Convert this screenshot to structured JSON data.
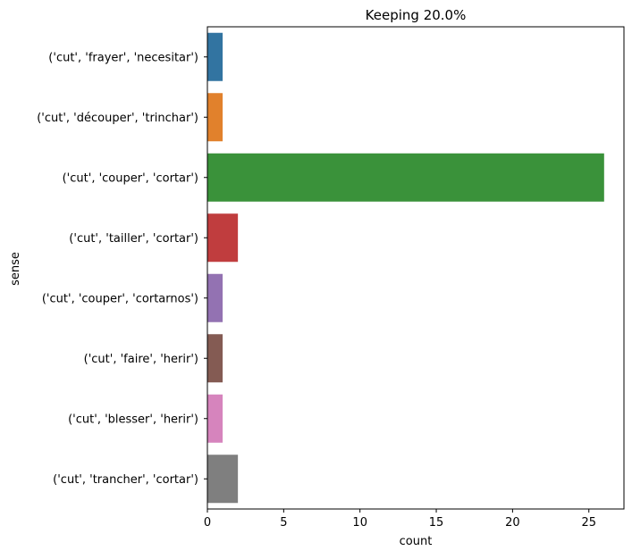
{
  "chart_data": {
    "type": "bar",
    "orientation": "horizontal",
    "title": "Keeping 20.0%",
    "xlabel": "count",
    "ylabel": "sense",
    "categories": [
      "('cut', 'frayer', 'necesitar')",
      "('cut', 'découper', 'trinchar')",
      "('cut', 'couper', 'cortar')",
      "('cut', 'tailler', 'cortar')",
      "('cut', 'couper', 'cortarnos')",
      "('cut', 'faire', 'herir')",
      "('cut', 'blesser', 'herir')",
      "('cut', 'trancher', 'cortar')"
    ],
    "values": [
      1,
      1,
      26,
      2,
      1,
      1,
      1,
      2
    ],
    "colors": [
      "#3274a1",
      "#e1812c",
      "#3a923a",
      "#c03d3e",
      "#9372b2",
      "#845b53",
      "#d684bd",
      "#7f7f7f"
    ],
    "xlim": [
      0,
      27.3
    ],
    "xticks": [
      0,
      5,
      10,
      15,
      20,
      25
    ],
    "grid": false,
    "legend": "none"
  }
}
